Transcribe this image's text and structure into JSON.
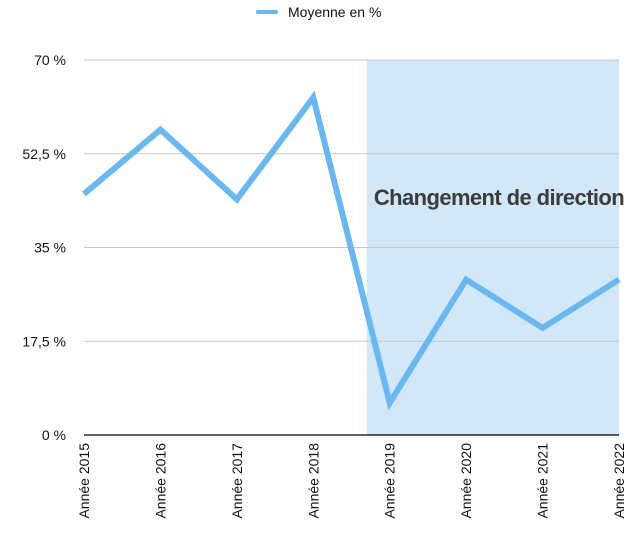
{
  "chart_data": {
    "type": "line",
    "categories": [
      "Année 2015",
      "Année 2016",
      "Année 2017",
      "Année 2018",
      "Année 2019",
      "Année 2020",
      "Année 2021",
      "Année 2022"
    ],
    "series": [
      {
        "name": "Moyenne en %",
        "values": [
          45,
          57,
          44,
          63,
          6,
          29,
          20,
          29
        ]
      }
    ],
    "ylim": [
      0,
      70
    ],
    "yticks": [
      0,
      17.5,
      35,
      52.5,
      70
    ],
    "ytick_labels": [
      "0 %",
      "17,5 %",
      "35 %",
      "52,5 %",
      "70 %"
    ],
    "grid": true,
    "legend_position": "top-center",
    "highlight_region": {
      "from_category_start": 3.7,
      "to_category_end": 7,
      "label": "Changement de direction"
    },
    "colors": {
      "line": "#6bb7f0",
      "highlight": "#d2e8f8",
      "grid": "#c8c8c8",
      "axis": "#000000"
    }
  }
}
